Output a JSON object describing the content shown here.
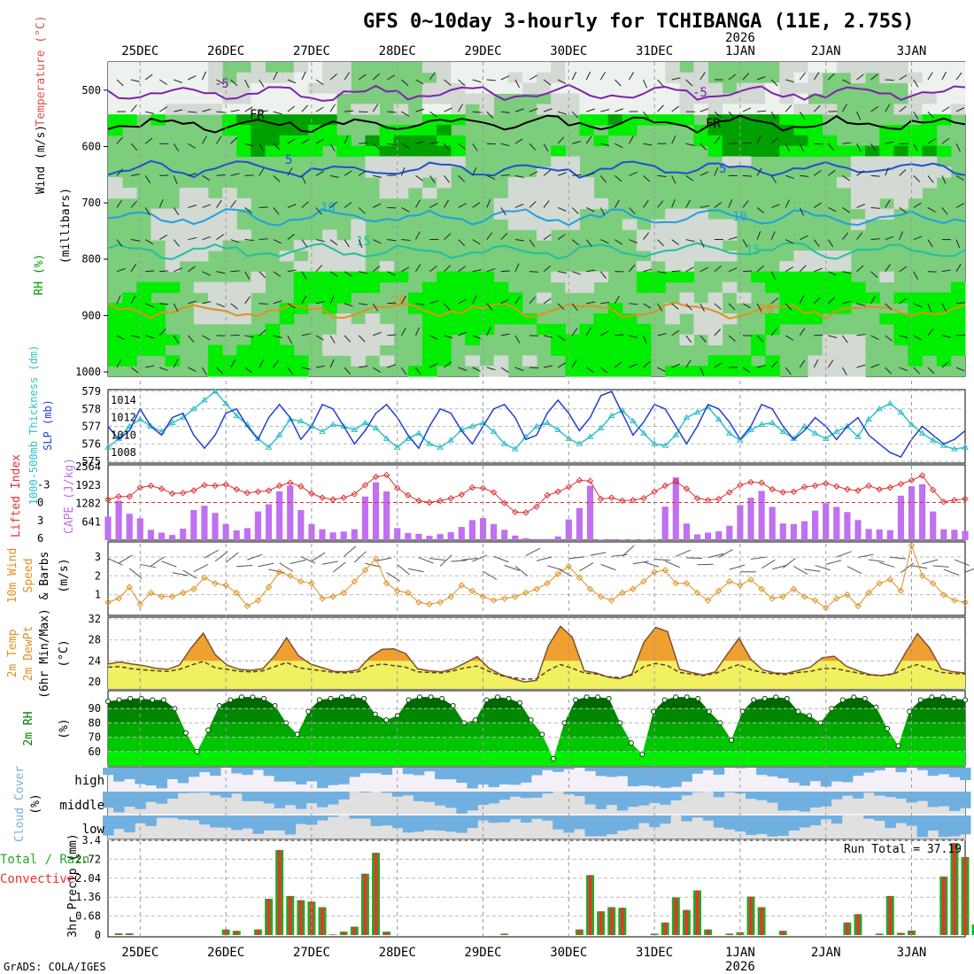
{
  "title": "GFS 0~10day 3-hourly for TCHIBANGA (11E, 2.75S)",
  "year_label": "2026",
  "credit": "GrADS: COLA/IGES",
  "days": [
    "25DEC",
    "26DEC",
    "27DEC",
    "28DEC",
    "29DEC",
    "30DEC",
    "31DEC",
    "1JAN",
    "2JAN",
    "3JAN"
  ],
  "colors": {
    "rh_light": "#d3d9d3",
    "rh_mid": "#7ccd7c",
    "rh_bright": "#00ee00",
    "rh_dark": "#00a000",
    "slp": "#2040d0",
    "thick": "#30c0c8",
    "li": "#e03030",
    "cape": "#c070f0",
    "wind10": "#e09020",
    "temp_fill": "#f0f060",
    "temp_hot": "#f0a030",
    "rh2m": "#008000",
    "cloud": "#70b0e0",
    "cloud_bg": "#e0e0e0",
    "precip_total": "#22aa22",
    "precip_conv": "#ee3030"
  },
  "panels": {
    "profile": {
      "ylabel_wind": "Wind (m/s)",
      "ylabel_temp": "Temperature (°C)",
      "ylabel_rh": "RH (%)",
      "ylabel_units": "(millibars)",
      "pressure_ticks": [
        "500",
        "600",
        "700",
        "800",
        "900",
        "1000"
      ],
      "isotherm_labels": [
        "-5",
        "FR",
        "5",
        "10",
        "15",
        "20"
      ]
    },
    "slp": {
      "label_thick": "1000-500mb Thickness (dm)",
      "label_slp": "SLP (mb)",
      "left_ticks": [
        "579",
        "578",
        "577",
        "576",
        "575"
      ],
      "right_ticks": [
        "1014",
        "1012",
        "1010",
        "1008"
      ]
    },
    "li": {
      "label_li": "Lifted Index",
      "label_cape": "CAPE (J/kg)",
      "left_ticks": [
        "-3",
        "0",
        "3",
        "6"
      ],
      "cape_ticks": [
        "2564",
        "1923",
        "1282",
        "641"
      ]
    },
    "wind10": {
      "label1": "10m Wind",
      "label2": "Speed",
      "label3": "& Barbs",
      "units": "(m/s)",
      "ticks": [
        "1",
        "2",
        "3"
      ]
    },
    "temp2m": {
      "label1": "2m Temp",
      "label2": "2m DewPt",
      "label3": "(6hr Min/Max)",
      "units": "(°C)",
      "ticks": [
        "20",
        "24",
        "28",
        "32"
      ]
    },
    "rh2m": {
      "label": "2m RH",
      "units": "(%)",
      "ticks": [
        "60",
        "70",
        "80",
        "90"
      ]
    },
    "cloud": {
      "label": "Cloud Cover",
      "units": "(%)",
      "levels": [
        "high",
        "middle",
        "low"
      ]
    },
    "precip": {
      "label_total": "Total / Rain",
      "label_conv": "Convective",
      "label_y": "3hr Precip (mm)",
      "ticks": [
        "0",
        "0.68",
        "1.36",
        "2.04",
        "2.72",
        "3.4"
      ],
      "run_total": "Run Total = 37.19"
    }
  },
  "chart_data": [
    {
      "type": "line",
      "name": "slp",
      "x_hours": [
        0,
        3,
        6,
        9,
        12,
        15,
        18,
        21,
        24,
        27,
        30,
        33,
        36,
        39,
        42,
        45,
        48,
        51,
        54,
        57,
        60,
        63,
        66,
        69,
        72,
        75,
        78,
        81,
        84,
        87,
        90,
        93,
        96,
        99,
        102,
        105,
        108,
        111,
        114,
        117,
        120,
        123,
        126,
        129,
        132,
        135,
        138,
        141,
        144,
        147,
        150,
        153,
        156,
        159,
        162,
        165,
        168,
        171,
        174,
        177,
        180,
        183,
        186,
        189,
        192,
        195,
        198,
        201,
        204,
        207,
        210,
        213,
        216,
        219,
        222,
        225,
        228,
        231,
        234,
        237,
        240
      ],
      "series": [
        {
          "values": [
            1011,
            1009.5,
            1010.5,
            1013,
            1011,
            1010,
            1012,
            1012.5,
            1010,
            1008.5,
            1010,
            1012.5,
            1013,
            1011,
            1009.5,
            1012,
            1013.5,
            1012,
            1009.5,
            1011,
            1013.5,
            1013,
            1011,
            1009,
            1010.5,
            1012.5,
            1013.5,
            1012,
            1010,
            1008.5,
            1011,
            1013,
            1012.5,
            1010.5,
            1009,
            1011,
            1013,
            1013.5,
            1012,
            1009.5,
            1010,
            1012.5,
            1014,
            1012.5,
            1010.5,
            1012,
            1014.5,
            1015,
            1012.5,
            1010,
            1011.5,
            1013.5,
            1013,
            1011,
            1009,
            1011,
            1013.5,
            1013,
            1011.5,
            1009.5,
            1011,
            1013.5,
            1013,
            1011,
            1009.5,
            1010.5,
            1012,
            1011,
            1009.5,
            1011,
            1012,
            1010,
            1009,
            1008,
            1007.5,
            1009.5,
            1011,
            1010,
            1009,
            1009.5,
            1010.5
          ]
        }
      ],
      "ylim": [
        1007,
        1015
      ]
    },
    {
      "type": "line",
      "name": "thickness",
      "series": [
        {
          "values": [
            575.8,
            576.3,
            577,
            577.4,
            577,
            576.7,
            577.2,
            577.5,
            578,
            578.5,
            579,
            578.3,
            577.6,
            577.1,
            576.3,
            575.8,
            576.5,
            577.4,
            577.3,
            577,
            576.7,
            577.1,
            577,
            576.8,
            577.2,
            576.9,
            576.3,
            575.8,
            576.3,
            576.6,
            576,
            575.8,
            576.2,
            576.8,
            577,
            577.2,
            576.7,
            576,
            575.7,
            576.4,
            577,
            577.2,
            576.8,
            576.3,
            576,
            576.4,
            576.9,
            577.6,
            577.9,
            577.3,
            576.6,
            576,
            575.9,
            576.5,
            577.5,
            577.8,
            578.1,
            577.4,
            576.6,
            576.2,
            576.8,
            577.1,
            577.2,
            576.7,
            576.3,
            577,
            576.6,
            576.3,
            576.7,
            577,
            576.4,
            577.4,
            578,
            578.3,
            577.8,
            577.1,
            576.6,
            576.2,
            575.9,
            575.7,
            575.8
          ]
        }
      ],
      "ylim": [
        575,
        579
      ]
    },
    {
      "type": "bar",
      "name": "cape",
      "values": [
        820,
        1380,
        920,
        760,
        360,
        260,
        180,
        400,
        1050,
        1200,
        950,
        560,
        340,
        420,
        1000,
        1250,
        1700,
        1900,
        1050,
        560,
        380,
        270,
        300,
        380,
        1520,
        2020,
        1700,
        420,
        250,
        220,
        150,
        210,
        280,
        460,
        700,
        770,
        560,
        360,
        160,
        70,
        40,
        40,
        130,
        720,
        1120,
        1900,
        20,
        30,
        20,
        20,
        20,
        20,
        1170,
        2190,
        580,
        200,
        260,
        310,
        500,
        1220,
        1480,
        1720,
        1160,
        580,
        560,
        660,
        1030,
        1290,
        1160,
        980,
        700,
        390,
        370,
        350,
        1550,
        1880,
        1950,
        1000,
        380,
        360,
        320
      ],
      "ylim": [
        0,
        2564
      ]
    },
    {
      "type": "line",
      "name": "lifted_index",
      "values": [
        -0.5,
        -1,
        -1,
        -2.5,
        -2.8,
        -2.3,
        -1.5,
        -1.6,
        -2,
        -2.9,
        -2.8,
        -3,
        -2.2,
        -1.6,
        -1.8,
        -2,
        -2.8,
        -3.3,
        -2.7,
        -1.5,
        -0.8,
        -0.5,
        -0.8,
        -1.4,
        -2.9,
        -4.3,
        -4.6,
        -2.4,
        -1.2,
        -0.3,
        0,
        -0.3,
        -0.7,
        -1.3,
        -2.5,
        -2.4,
        -1.7,
        0.1,
        1.6,
        1.7,
        0.7,
        -1.2,
        -1.8,
        -2.6,
        -3.7,
        -3.6,
        -0.6,
        -0.8,
        -0.3,
        -0.4,
        -0.7,
        -1.8,
        -2.8,
        -3.5,
        -2.3,
        -0.7,
        -0.4,
        -0.6,
        -1.7,
        -2.9,
        -3.4,
        -3.3,
        -2.2,
        -1.7,
        -1.8,
        -2.6,
        -2.8,
        -3.2,
        -2.7,
        -2.2,
        -2,
        -2.8,
        -2.2,
        -2.5,
        -3.1,
        -3.7,
        -4.5,
        -2.1,
        -0.1,
        -0.4,
        -0.6
      ],
      "ylim": [
        6,
        -6
      ]
    },
    {
      "type": "line",
      "name": "wind10m",
      "values": [
        0.6,
        0.8,
        1.4,
        0.5,
        1.1,
        0.9,
        0.9,
        1.1,
        1.3,
        1.9,
        1.6,
        1.5,
        1.1,
        0.4,
        0.7,
        1.4,
        2.2,
        2,
        1.7,
        1.6,
        0.8,
        0.9,
        1.1,
        1.7,
        2.3,
        2.9,
        1.6,
        1.2,
        1.1,
        0.6,
        0.5,
        0.6,
        0.9,
        1.5,
        1.2,
        0.9,
        0.7,
        0.8,
        0.9,
        1.1,
        1.3,
        1.6,
        2.1,
        2.5,
        1.9,
        1.3,
        0.9,
        0.7,
        1.1,
        1.3,
        1.7,
        2.2,
        2.3,
        1.6,
        1.6,
        1.1,
        0.7,
        1.2,
        1.7,
        1.5,
        1.8,
        1.3,
        0.8,
        0.9,
        1.3,
        0.9,
        0.7,
        0.3,
        0.8,
        1,
        0.4,
        1.1,
        1.6,
        1.8,
        1.2,
        3.6,
        2,
        1.6,
        1,
        0.7,
        0.6
      ],
      "ylim": [
        0,
        3.7
      ]
    },
    {
      "type": "area",
      "name": "temp2m",
      "temp": [
        23.4,
        23.8,
        23.4,
        23.1,
        22.6,
        22.4,
        23.2,
        26.5,
        29.3,
        25.2,
        23.2,
        22.4,
        22.2,
        22.5,
        25,
        28.4,
        25,
        23.4,
        22.7,
        22,
        21.9,
        22.3,
        24.7,
        26.2,
        26.3,
        25.4,
        22.5,
        22.1,
        21.9,
        22.5,
        23.6,
        24.8,
        22.6,
        21.4,
        20.6,
        20,
        20.3,
        26.9,
        30.6,
        28.5,
        22.1,
        21.7,
        20.9,
        20.6,
        21.5,
        27.5,
        30.4,
        29.6,
        22.4,
        21.8,
        21.3,
        21.9,
        25.2,
        28.3,
        24.3,
        22.3,
        21.7,
        21.6,
        22.2,
        22.8,
        24.6,
        24.9,
        23,
        22.1,
        21.4,
        21.2,
        21.6,
        25.6,
        29.2,
        26.5,
        22.5,
        21.9,
        21.7
      ],
      "dewpt": [
        22.8,
        22.9,
        22.5,
        22.3,
        22.1,
        22,
        22.4,
        23.2,
        23.9,
        22.7,
        22.4,
        22,
        21.9,
        22.1,
        22.9,
        23.7,
        22.7,
        22.4,
        22.1,
        21.8,
        21.7,
        21.9,
        23,
        23.4,
        23.1,
        22.8,
        21.9,
        21.8,
        21.7,
        22.1,
        22.7,
        23,
        22,
        21.2,
        20.8,
        20.5,
        20.6,
        22.2,
        23.3,
        22.6,
        21.7,
        21.5,
        21,
        20.8,
        21.3,
        22.9,
        23.5,
        23.1,
        21.8,
        21.5,
        21.2,
        21.6,
        22.5,
        23.3,
        22.3,
        21.8,
        21.5,
        21.4,
        21.8,
        22,
        22.5,
        22.6,
        22.1,
        21.7,
        21.3,
        21.2,
        21.5,
        22.6,
        23.3,
        22.5,
        21.8,
        21.6,
        21.5
      ],
      "ylim": [
        19,
        32
      ]
    },
    {
      "type": "area",
      "name": "rh2m",
      "values": [
        95,
        96,
        97,
        97,
        96,
        96,
        90,
        73,
        60,
        75,
        92,
        96,
        98,
        98,
        97,
        92,
        80,
        72,
        88,
        96,
        97,
        98,
        98,
        97,
        86,
        82,
        85,
        96,
        98,
        98,
        97,
        92,
        80,
        82,
        96,
        98,
        97,
        94,
        82,
        72,
        55,
        80,
        96,
        98,
        98,
        97,
        80,
        66,
        58,
        88,
        96,
        98,
        98,
        97,
        88,
        80,
        68,
        88,
        96,
        97,
        98,
        97,
        88,
        85,
        80,
        90,
        96,
        98,
        97,
        91,
        76,
        64,
        88,
        96,
        98,
        98,
        97,
        96
      ],
      "ylim": [
        50,
        100
      ]
    },
    {
      "type": "bar",
      "name": "precip",
      "total": [
        0,
        0.06,
        0.06,
        0,
        0,
        0,
        0,
        0,
        0,
        0,
        0,
        0.2,
        0.15,
        0,
        0.2,
        1.3,
        3.05,
        1.4,
        1.25,
        1.2,
        1.0,
        0.02,
        0.12,
        0.3,
        2.2,
        2.95,
        0.12,
        0,
        0,
        0,
        0,
        0,
        0,
        0,
        0,
        0,
        0,
        0.05,
        0,
        0,
        0,
        0,
        0,
        0,
        0.2,
        2.15,
        0.85,
        1.0,
        0.98,
        0,
        0,
        0.05,
        0.45,
        1.35,
        0.9,
        1.6,
        0.2,
        0,
        0.05,
        0.1,
        1.38,
        1.0,
        0,
        0.15,
        0,
        0,
        0,
        0,
        0,
        0.45,
        0.75,
        0,
        0.05,
        1.4,
        0.08,
        0.16,
        0,
        0,
        2.1,
        3.3,
        2.8,
        0.38,
        0.05
      ],
      "ylim": [
        0,
        3.4
      ]
    }
  ]
}
